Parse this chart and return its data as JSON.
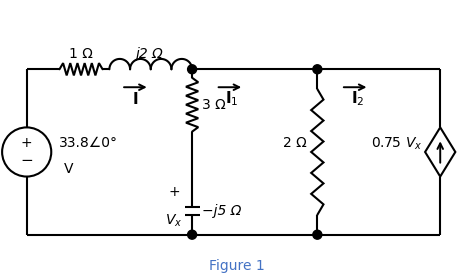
{
  "fig_width": 4.74,
  "fig_height": 2.76,
  "dpi": 100,
  "background": "#ffffff",
  "line_color": "#000000",
  "lw": 1.5,
  "title": "Figure 1",
  "title_color": "#4472c4",
  "title_fontsize": 10,
  "labels": {
    "res1": "1 Ω",
    "ind1": "j2 Ω",
    "res2": "3 Ω",
    "res3": "2 Ω",
    "cap1": "−j5 Ω",
    "dep": "0.75 V",
    "dep_sub": "x",
    "volt_line1": "33.8∠0°",
    "volt_line2": "V",
    "I": "I",
    "I1": "I",
    "I1_sub": "1",
    "I2": "I",
    "I2_sub": "2",
    "Vx_plus": "+",
    "Vx_minus": "−",
    "Vx_label": "V",
    "Vx_sub": "x"
  }
}
